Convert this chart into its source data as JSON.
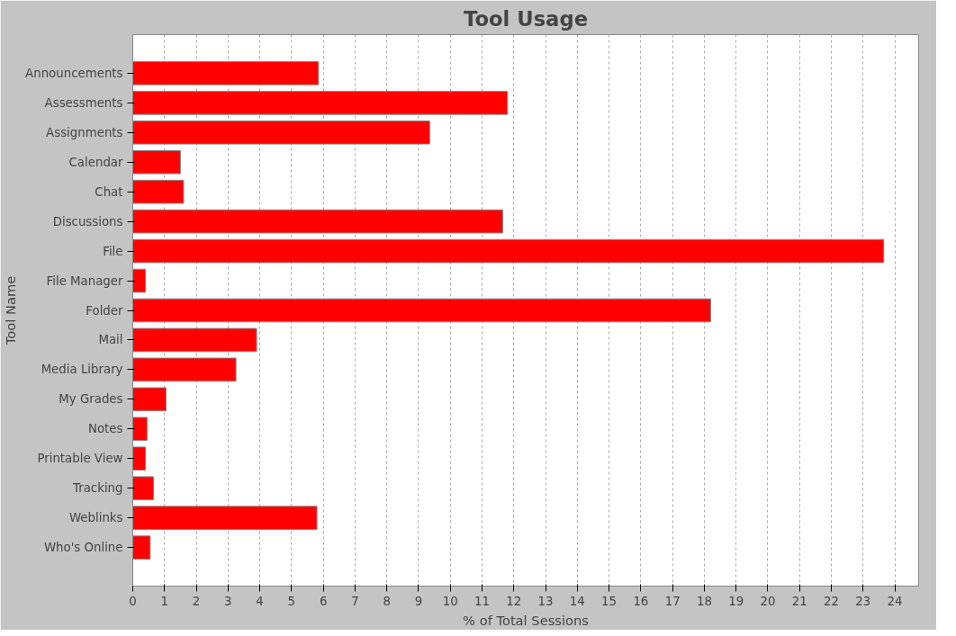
{
  "chart_data": {
    "type": "bar",
    "orientation": "horizontal",
    "title": "Tool Usage",
    "xlabel": "% of Total Sessions",
    "ylabel": "Tool Name",
    "categories": [
      "Announcements",
      "Assessments",
      "Assignments",
      "Calendar",
      "Chat",
      "Discussions",
      "File",
      "File Manager",
      "Folder",
      "Mail",
      "Media Library",
      "My Grades",
      "Notes",
      "Printable View",
      "Tracking",
      "Weblinks",
      "Who's Online"
    ],
    "values": [
      5.85,
      11.8,
      9.35,
      1.5,
      1.6,
      11.65,
      23.65,
      0.4,
      18.2,
      3.9,
      3.25,
      1.05,
      0.45,
      0.4,
      0.65,
      5.8,
      0.55
    ],
    "color": "#ff0000",
    "xlim": [
      0,
      24.75
    ],
    "xticks": [
      0,
      1,
      2,
      3,
      4,
      5,
      6,
      7,
      8,
      9,
      10,
      11,
      12,
      13,
      14,
      15,
      16,
      17,
      18,
      19,
      20,
      21,
      22,
      23,
      24
    ],
    "grid": "x"
  }
}
